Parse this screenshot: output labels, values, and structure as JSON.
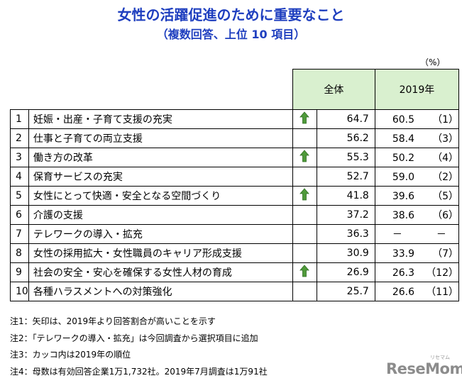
{
  "title": "女性の活躍促進のために重要なこと",
  "subtitle": "（複数回答、上位 10 項目）",
  "unit": "（%）",
  "headers": {
    "total": "全体",
    "year2019": "2019年"
  },
  "rows": [
    {
      "rank": "1",
      "item": "妊娠・出産・子育て支援の充実",
      "up": true,
      "total": "64.7",
      "y2019": "60.5",
      "rank2019": "（1）"
    },
    {
      "rank": "2",
      "item": "仕事と子育ての両立支援",
      "up": false,
      "total": "56.2",
      "y2019": "58.4",
      "rank2019": "（3）"
    },
    {
      "rank": "3",
      "item": "働き方の改革",
      "up": true,
      "total": "55.3",
      "y2019": "50.2",
      "rank2019": "（4）"
    },
    {
      "rank": "4",
      "item": "保育サービスの充実",
      "up": false,
      "total": "52.7",
      "y2019": "59.0",
      "rank2019": "（2）"
    },
    {
      "rank": "5",
      "item": "女性にとって快適・安全となる空間づくり",
      "up": true,
      "total": "41.8",
      "y2019": "39.6",
      "rank2019": "（5）"
    },
    {
      "rank": "6",
      "item": "介護の支援",
      "up": false,
      "total": "37.2",
      "y2019": "38.6",
      "rank2019": "（6）"
    },
    {
      "rank": "7",
      "item": "テレワークの導入・拡充",
      "up": false,
      "total": "36.3",
      "y2019": "－",
      "rank2019": "－"
    },
    {
      "rank": "8",
      "item": "女性の採用拡大・女性職員のキャリア形成支援",
      "up": false,
      "total": "30.9",
      "y2019": "33.9",
      "rank2019": "（7）"
    },
    {
      "rank": "9",
      "item": "社会の安全・安心を確保する女性人材の育成",
      "up": true,
      "total": "26.9",
      "y2019": "26.3",
      "rank2019": "（12）"
    },
    {
      "rank": "10",
      "item": "各種ハラスメントへの対策強化",
      "up": false,
      "total": "25.7",
      "y2019": "26.6",
      "rank2019": "（11）"
    }
  ],
  "notes": [
    "注1：矢印は、2019年より回答割合が高いことを示す",
    "注2：「テレワークの導入・拡充」は今回調査から選択項目に追加",
    "注3：カッコ内は2019年の順位",
    "注4：母数は有効回答企業1万1,732社。2019年7月調査は1万91社"
  ],
  "logo": {
    "text": "ReseMom",
    "small": "リセマム"
  },
  "colors": {
    "title": "#1f3fbf",
    "header_bg": "#d9f0cf",
    "arrow": "#4f9a3a"
  }
}
